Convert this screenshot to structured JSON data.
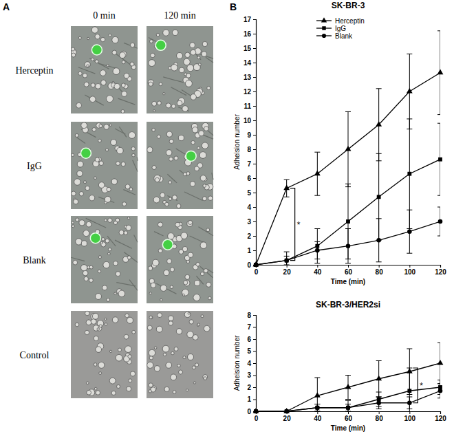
{
  "figure": {
    "panel_labels": [
      "A",
      "B"
    ],
    "columns": [
      "0 min",
      "120 min"
    ],
    "rows": [
      "Herceptin",
      "IgG",
      "Blank",
      "Control"
    ],
    "labelled_cells": [
      true,
      true,
      true,
      false
    ]
  },
  "chart_data": [
    {
      "type": "line",
      "title": "SK-BR-3",
      "x_label": "Time (min)",
      "y_label": "Adheision number",
      "x": [
        0,
        20,
        40,
        60,
        80,
        100,
        120
      ],
      "xlim": [
        0,
        120
      ],
      "xticks": [
        0,
        20,
        40,
        60,
        80,
        100,
        120
      ],
      "ylim": [
        0,
        17
      ],
      "yticks": [
        0,
        1,
        2,
        3,
        4,
        5,
        6,
        7,
        8,
        9,
        10,
        11,
        12,
        13,
        14,
        15,
        16,
        17
      ],
      "grid": false,
      "legend": "top",
      "series": [
        {
          "name": "Herceptin",
          "color": "#000000",
          "marker": "triangle",
          "values": [
            0,
            5.3,
            6.3,
            8,
            9.7,
            12,
            13.3
          ],
          "errors": [
            0,
            0.6,
            1.5,
            2.6,
            2.5,
            2.6,
            2.9
          ]
        },
        {
          "name": "IgG",
          "color": "#000000",
          "marker": "square",
          "values": [
            0,
            0.3,
            1.3,
            3,
            4.7,
            6.3,
            7.3
          ],
          "errors": [
            0,
            0.6,
            1.2,
            2.6,
            3,
            3.8,
            2.5
          ]
        },
        {
          "name": "Blank",
          "color": "#000000",
          "marker": "circle",
          "values": [
            0,
            0.3,
            1,
            1.3,
            1.7,
            2.3,
            3
          ],
          "errors": [
            0,
            0.3,
            0.6,
            1.2,
            1.5,
            1.5,
            1
          ]
        }
      ],
      "annotations": [
        {
          "text": "*",
          "x": 20,
          "y_from": 0.3,
          "y_to": 5.3
        }
      ]
    },
    {
      "type": "line",
      "title": "SK-BR-3/HER2si",
      "x_label": "Time (min)",
      "y_label": "Adheision number",
      "x": [
        0,
        20,
        40,
        60,
        80,
        100,
        120
      ],
      "xlim": [
        0,
        120
      ],
      "xticks": [
        0,
        20,
        40,
        60,
        80,
        100,
        120
      ],
      "ylim": [
        0,
        8
      ],
      "yticks": [
        0,
        1,
        2,
        3,
        4,
        5,
        6,
        7,
        8
      ],
      "grid": false,
      "series": [
        {
          "color": "#000000",
          "marker": "triangle",
          "values": [
            0,
            0,
            1.3,
            2,
            2.7,
            3.3,
            4
          ],
          "errors": [
            0,
            0,
            1.5,
            1,
            1.5,
            1.9,
            1.7
          ]
        },
        {
          "color": "#000000",
          "marker": "square",
          "values": [
            0,
            0,
            0.3,
            0.3,
            1,
            1.7,
            2
          ],
          "errors": [
            0,
            0,
            0.3,
            0.6,
            0.6,
            1.9,
            0.6
          ]
        },
        {
          "color": "#000000",
          "marker": "circle",
          "values": [
            0,
            0,
            0.3,
            0.3,
            0.7,
            0.7,
            1.7
          ],
          "errors": [
            0,
            0,
            0.3,
            0.3,
            0.5,
            0.5,
            0.6
          ]
        }
      ],
      "annotations": [
        {
          "text": "*",
          "x": 100,
          "y_from": 0.7,
          "y_to": 3.6
        }
      ]
    }
  ]
}
